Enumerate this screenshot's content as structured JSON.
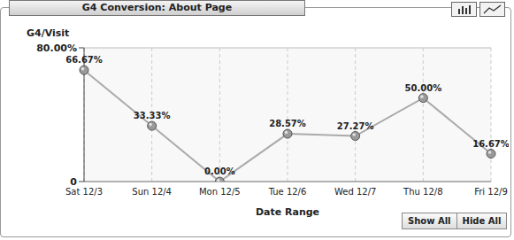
{
  "chart_data": {
    "type": "line",
    "title": "G4 Conversion: About Page",
    "y_label": "G4/Visit",
    "x_label": "Date Range",
    "categories": [
      "Sat 12/3",
      "Sun 12/4",
      "Mon 12/5",
      "Tue 12/6",
      "Wed 12/7",
      "Thu 12/8",
      "Fri 12/9"
    ],
    "values": [
      66.67,
      33.33,
      0,
      28.57,
      27.27,
      50,
      16.67
    ],
    "value_labels": [
      "66.67%",
      "33.33%",
      "0.00%",
      "28.57%",
      "27.27%",
      "50.00%",
      "16.67%"
    ],
    "color": "#aaaaaa",
    "marker": "circle",
    "line_style": "solid",
    "ylim": [
      0,
      80
    ],
    "yticks": [
      0,
      {
        "value": 80,
        "label": "80.00%"
      }
    ],
    "grid": true,
    "data_labels": true,
    "buttons": [
      "Show All",
      "Hide All"
    ]
  }
}
